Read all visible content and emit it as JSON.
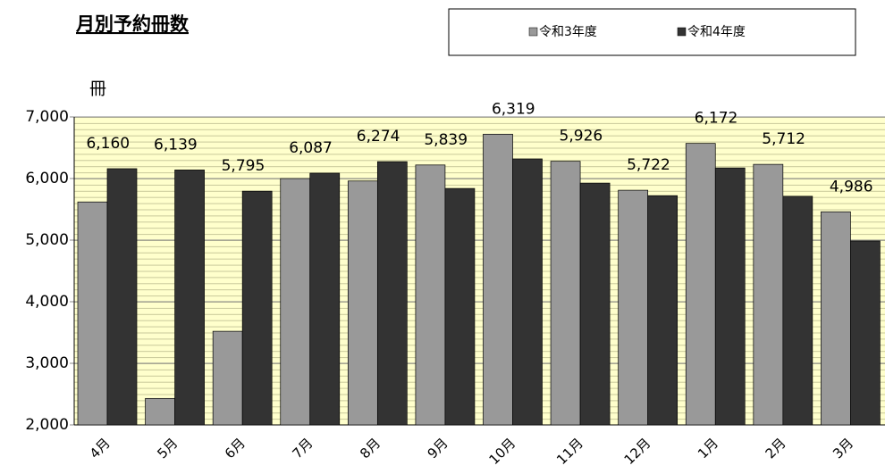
{
  "chart_data": {
    "type": "bar",
    "title": "月別予約冊数",
    "y_label": "冊",
    "categories": [
      "4月",
      "5月",
      "6月",
      "7月",
      "8月",
      "9月",
      "10月",
      "11月",
      "12月",
      "1月",
      "2月",
      "3月"
    ],
    "series": [
      {
        "name": "令和3年度",
        "color": "#999999",
        "values": [
          5620,
          2430,
          3520,
          6000,
          5960,
          6220,
          6720,
          6280,
          5810,
          6570,
          6230,
          5460
        ]
      },
      {
        "name": "令和4年度",
        "color": "#333333",
        "values": [
          6160,
          6139,
          5795,
          6087,
          6274,
          5839,
          6319,
          5926,
          5722,
          6172,
          5712,
          4986
        ],
        "value_labels": [
          "6,160",
          "6,139",
          "5,795",
          "6,087",
          "6,274",
          "5,839",
          "6,319",
          "5,926",
          "5,722",
          "6,172",
          "5,712",
          "4,986"
        ]
      }
    ],
    "ylim": [
      2000,
      7000
    ],
    "yticks": [
      {
        "value": 2000,
        "label": "2,000"
      },
      {
        "value": 3000,
        "label": "3,000"
      },
      {
        "value": 4000,
        "label": "4,000"
      },
      {
        "value": 5000,
        "label": "5,000"
      },
      {
        "value": 6000,
        "label": "6,000"
      },
      {
        "value": 7000,
        "label": "7,000"
      }
    ],
    "grid": true,
    "legend": "top"
  }
}
